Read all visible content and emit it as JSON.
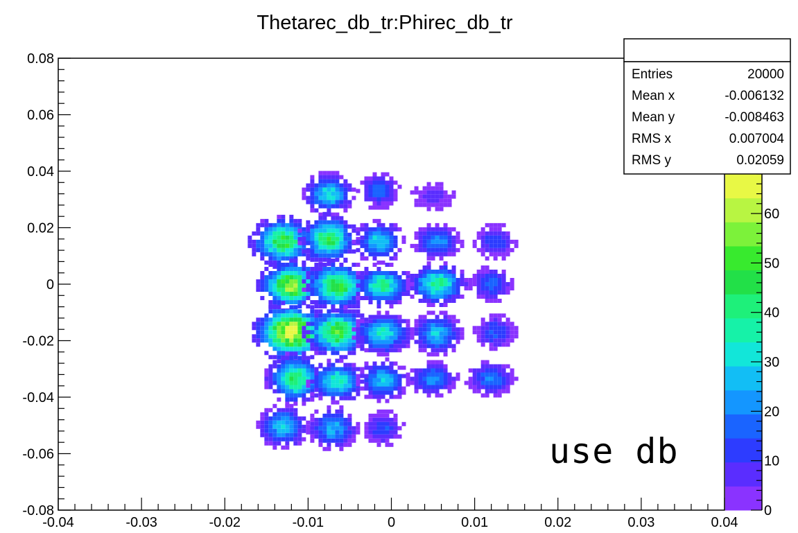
{
  "chart_data": {
    "type": "heatmap",
    "title": "Thetarec_db_tr:Phirec_db_tr",
    "xlabel": "",
    "ylabel": "",
    "xlim": [
      -0.04,
      0.04
    ],
    "ylim": [
      -0.08,
      0.08
    ],
    "x_ticks": [
      "-0.04",
      "-0.03",
      "-0.02",
      "-0.01",
      "0",
      "0.01",
      "0.02",
      "0.03",
      "0.04"
    ],
    "y_ticks": [
      "-0.08",
      "-0.06",
      "-0.04",
      "-0.02",
      "0",
      "0.02",
      "0.04",
      "0.06",
      "0.08"
    ],
    "colorbar": {
      "range": [
        0,
        68
      ],
      "ticks": [
        "0",
        "10",
        "20",
        "30",
        "40",
        "50",
        "60"
      ],
      "colors": [
        "#8a33ff",
        "#5a2dff",
        "#2d3cff",
        "#1a64ff",
        "#1496ff",
        "#12bef5",
        "#12e6d9",
        "#16f2a8",
        "#1ef07a",
        "#22e048",
        "#38ea2e",
        "#7cf23a",
        "#b8f542",
        "#e8f845"
      ]
    },
    "clusters": [
      {
        "x": -0.0075,
        "y": 0.032,
        "peak": 32
      },
      {
        "x": -0.0015,
        "y": 0.033,
        "peak": 18
      },
      {
        "x": 0.005,
        "y": 0.031,
        "peak": 8
      },
      {
        "x": -0.013,
        "y": 0.015,
        "peak": 48
      },
      {
        "x": -0.0075,
        "y": 0.016,
        "peak": 44
      },
      {
        "x": -0.0015,
        "y": 0.015,
        "peak": 30
      },
      {
        "x": 0.0055,
        "y": 0.015,
        "peak": 22
      },
      {
        "x": 0.0125,
        "y": 0.015,
        "peak": 14
      },
      {
        "x": -0.012,
        "y": -0.0005,
        "peak": 58
      },
      {
        "x": -0.0065,
        "y": -0.0005,
        "peak": 48
      },
      {
        "x": -0.001,
        "y": -0.0005,
        "peak": 38
      },
      {
        "x": 0.0055,
        "y": 0.0,
        "peak": 40
      },
      {
        "x": 0.012,
        "y": 0.0,
        "peak": 18
      },
      {
        "x": -0.012,
        "y": -0.017,
        "peak": 68
      },
      {
        "x": -0.0065,
        "y": -0.017,
        "peak": 50
      },
      {
        "x": -0.001,
        "y": -0.0175,
        "peak": 34
      },
      {
        "x": 0.0055,
        "y": -0.0175,
        "peak": 28
      },
      {
        "x": 0.0125,
        "y": -0.017,
        "peak": 16
      },
      {
        "x": -0.0115,
        "y": -0.0335,
        "peak": 44
      },
      {
        "x": -0.0065,
        "y": -0.0345,
        "peak": 36
      },
      {
        "x": -0.001,
        "y": -0.034,
        "peak": 28
      },
      {
        "x": 0.005,
        "y": -0.0335,
        "peak": 22
      },
      {
        "x": 0.012,
        "y": -0.0335,
        "peak": 20
      },
      {
        "x": -0.013,
        "y": -0.0505,
        "peak": 30
      },
      {
        "x": -0.007,
        "y": -0.051,
        "peak": 26
      },
      {
        "x": -0.001,
        "y": -0.051,
        "peak": 14
      }
    ]
  },
  "stats": {
    "rows": [
      {
        "label": "Entries",
        "value": "20000"
      },
      {
        "label": "Mean x",
        "value": "-0.006132"
      },
      {
        "label": "Mean y",
        "value": "-0.008463"
      },
      {
        "label": "RMS x",
        "value": "0.007004"
      },
      {
        "label": "RMS y",
        "value": "0.02059"
      }
    ]
  },
  "annotation": "use db"
}
